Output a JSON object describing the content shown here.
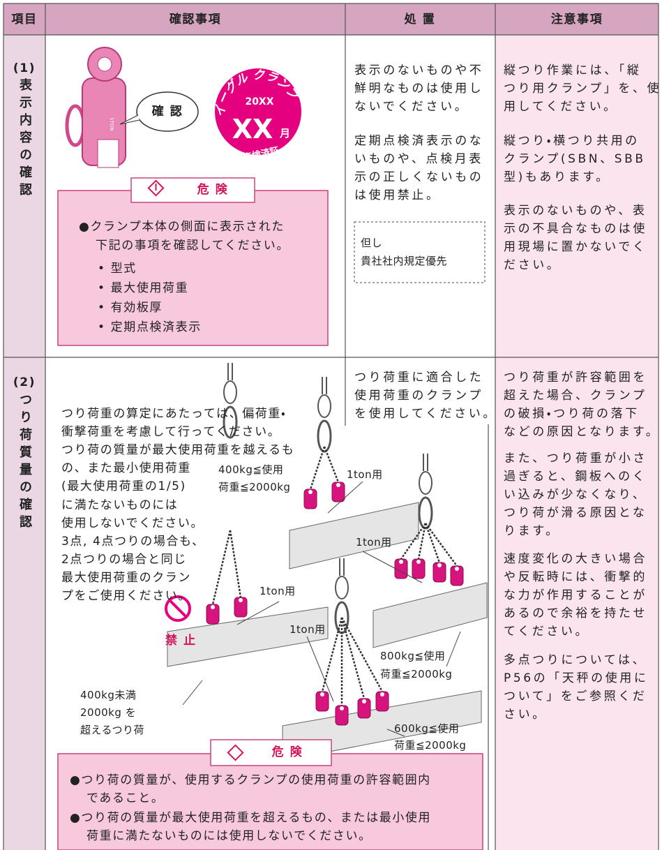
{
  "header": {
    "item": "項目",
    "check": "確認事項",
    "action": "処 置",
    "caution": "注意事項"
  },
  "rows": [
    {
      "number": "(1)",
      "label": "表示内容の確認",
      "check": {
        "callout": "確 認",
        "clamp_mark": "1TON",
        "stamp": {
          "brand": "イーグル クランプ",
          "year": "20XX",
          "month": "XX",
          "month_unit": "月",
          "label": "点検済証"
        },
        "danger": {
          "title": "危 険",
          "lines": [
            "●クランプ本体の側面に表示された",
            "下記の事項を確認してください。"
          ],
          "items": [
            "• 型式",
            "• 最大使用荷重",
            "• 有効板厚",
            "• 定期点検済表示"
          ]
        }
      },
      "action": {
        "paragraphs": [
          [
            "表示のないものや不",
            "鮮明なものは使用し",
            "ないでください。"
          ],
          [
            "定期点検済表示のな",
            "いものや、点検月表",
            "示の正しくないもの",
            "は使用禁止。"
          ]
        ],
        "note": [
          "但し",
          "貴社社内規定優先"
        ]
      },
      "caution": {
        "paragraphs": [
          [
            "縦つり作業には、「縦",
            "つり用クランプ」を、使",
            "用してください。"
          ],
          [
            "縦つり・横つり共用の",
            "クランプ(SBN、SBB",
            "型)もあります。"
          ],
          [
            "表示のないものや、表",
            "示の不具合なものは使",
            "用現場に置かないでく",
            "ださい。"
          ]
        ]
      }
    },
    {
      "number": "(2)",
      "label": "つり荷質量の確認",
      "check": {
        "lines": [
          "つり荷重の算定にあたっては、偏荷重・",
          "衝撃荷重を考慮して行ってください。",
          "つり荷の質量が最大使用荷重を越えるも",
          "の、また最小使用荷重",
          "(最大使用荷重の1/5)",
          "に満たないものには",
          "使用しないでください。",
          "3点, 4点つりの場合も、",
          "2点つりの場合と同じ",
          "最大使用荷重のクラン",
          "プをご使用ください。"
        ],
        "figure_labels": [
          "400kg≦使用",
          "荷重≦2000kg",
          "1ton用",
          "1ton用",
          "1ton用",
          "1ton用",
          "800kg≦使用",
          "荷重≦2000kg",
          "600kg≦使用",
          "荷重≦2000kg",
          "禁 止",
          "400kg未満",
          "2000kg を",
          "超えるつり荷"
        ],
        "danger": {
          "title": "危 険",
          "items": [
            [
              "●つり荷の質量が、使用するクランプの使用荷重の許容範囲内",
              "であること。"
            ],
            [
              "●つり荷の質量が最大使用荷重を超えるもの、または最小使用",
              "荷重に満たないものには使用しないでください。"
            ]
          ]
        }
      },
      "action": {
        "lines": [
          "つり荷重に適合した",
          "使用荷重のクランプ",
          "を使用してください。"
        ]
      },
      "caution": {
        "paragraphs": [
          [
            "つり荷重が許容範囲を",
            "超えた場合、クランプ",
            "の破損・つり荷の落下",
            "などの原因となります。"
          ],
          [
            "また、つり荷重が小さ",
            "過ぎると、鋼板へのく",
            "い込みが少なくなり、",
            "つり荷が滑る原因とな",
            "ります。"
          ],
          [
            "速度変化の大きい場合",
            "や反転時には、衝撃的",
            "な力が作用することが",
            "あるので余裕を持たせ",
            "てください。"
          ],
          [
            "多点つりについては、",
            "P56の「天秤の使用に",
            "ついて」をご参照くだ",
            "さい。"
          ]
        ]
      }
    }
  ]
}
